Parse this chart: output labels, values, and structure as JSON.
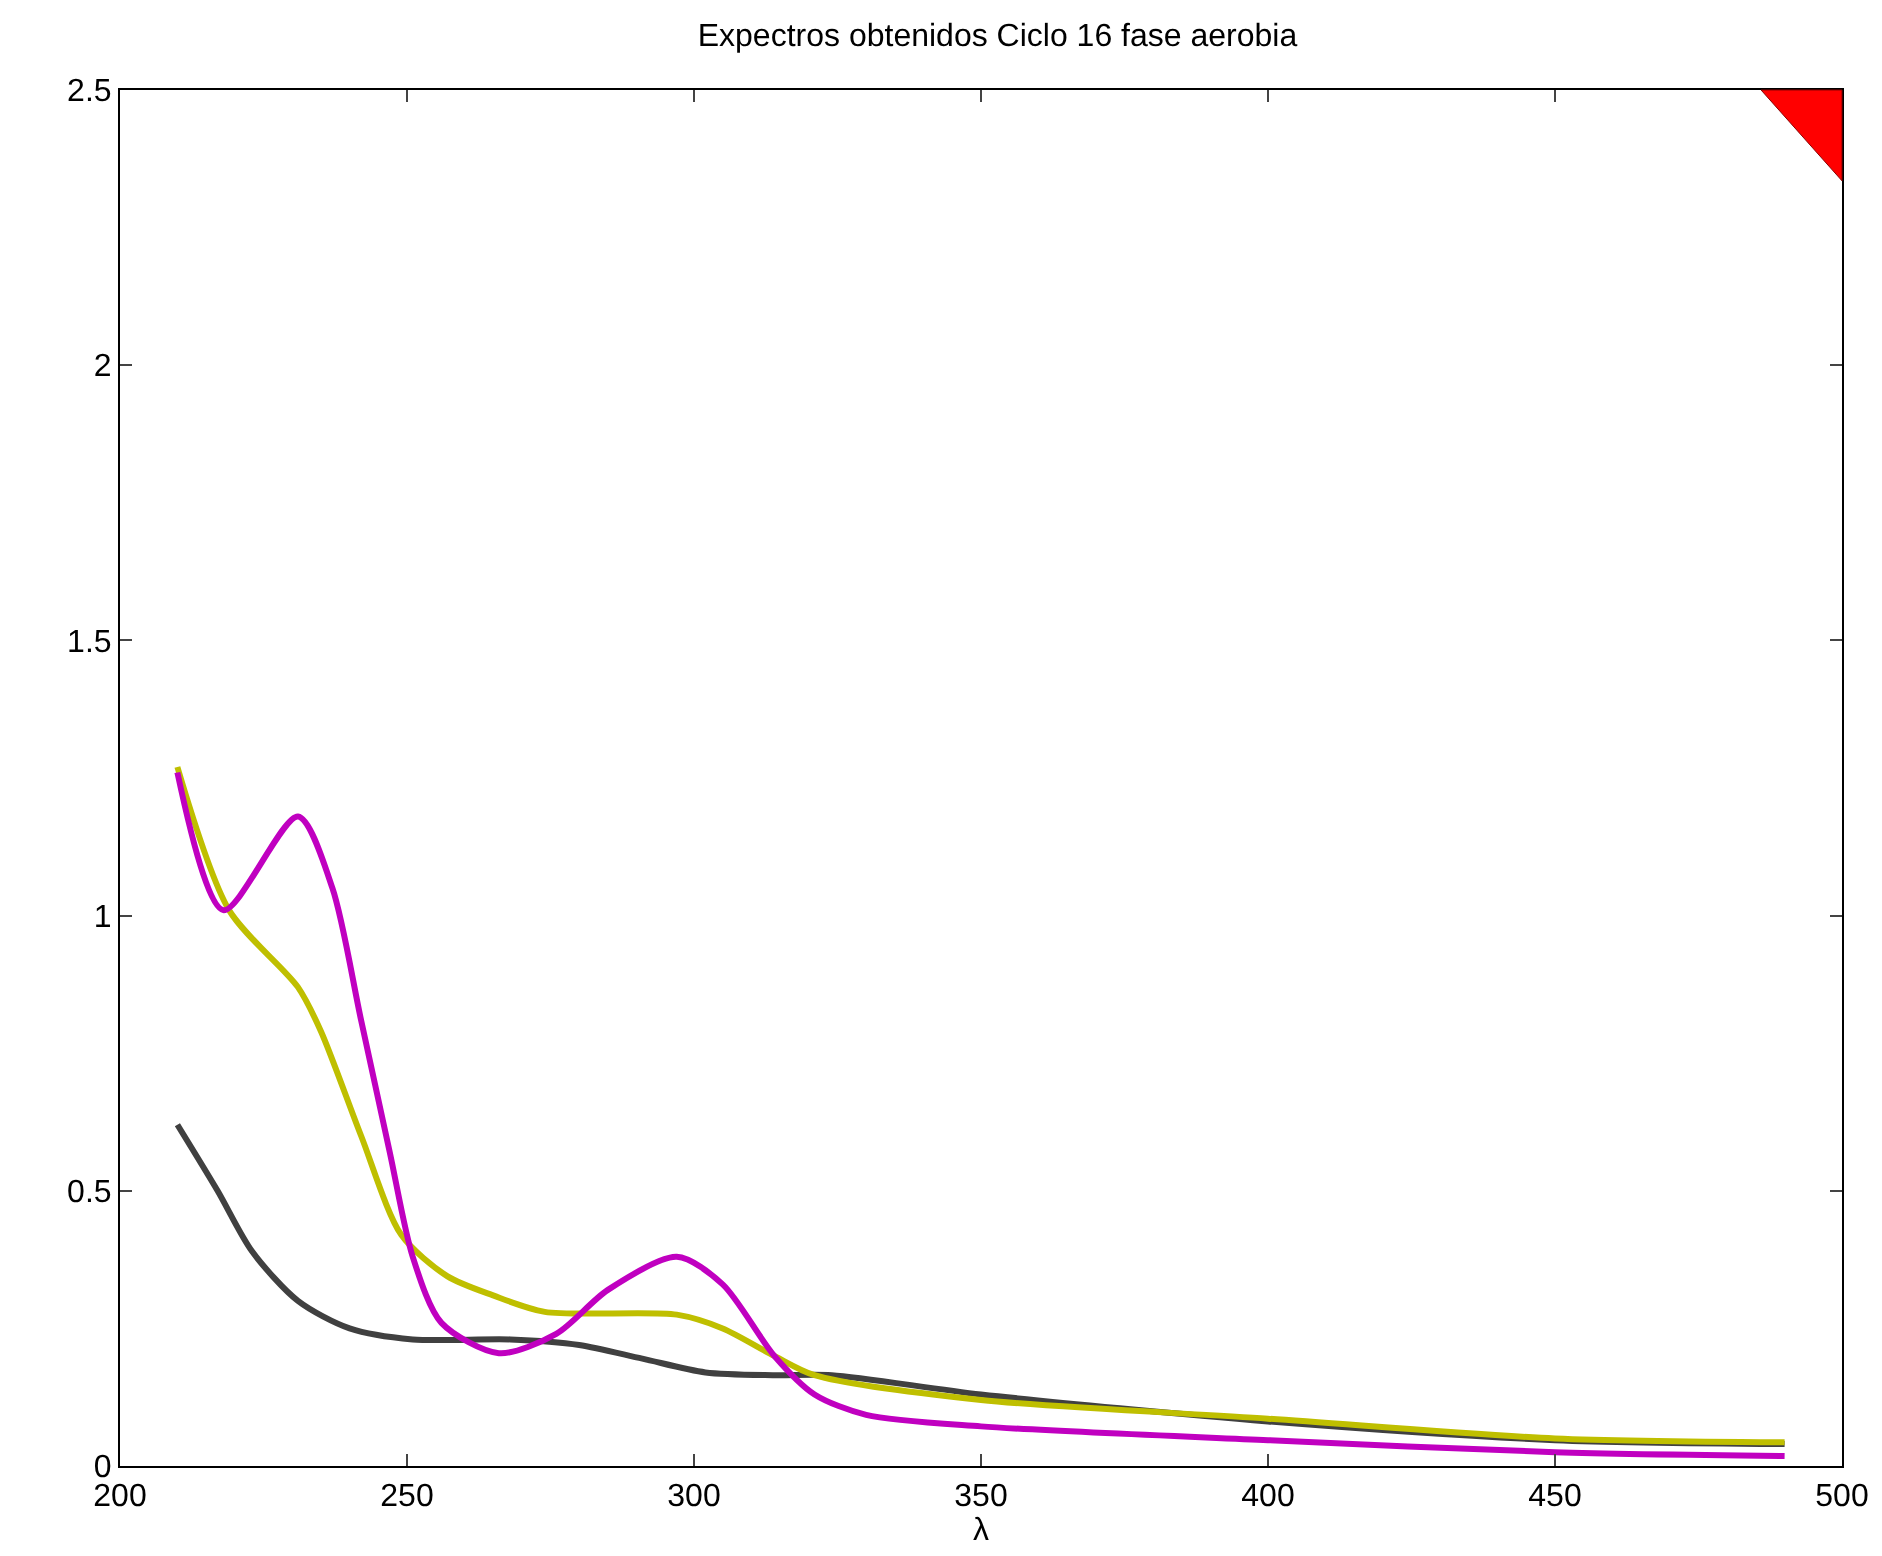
{
  "chart_data": {
    "type": "line",
    "title": "Expectros obtenidos Ciclo 16 fase aerobia",
    "xlabel": "λ",
    "xlim": [
      200,
      500
    ],
    "xticks": [
      200,
      250,
      300,
      350,
      400,
      450,
      500
    ],
    "ylim": [
      0,
      2.5
    ],
    "yticks": [
      0,
      {
        "value": 0.5,
        "label": "0.5"
      },
      1,
      {
        "value": 1.5,
        "label": "1.5"
      },
      2,
      {
        "value": 2.5,
        "label": "2.5"
      }
    ],
    "grid": false,
    "marker": "none",
    "line_style": "solid",
    "series": [
      {
        "color": "#404040",
        "x": [
          210,
          217,
          223,
          231,
          240,
          251,
          268,
          280,
          291,
          302,
          314,
          324,
          350,
          400,
          450,
          490
        ],
        "values": [
          0.62,
          0.5,
          0.39,
          0.3,
          0.25,
          0.23,
          0.23,
          0.22,
          0.195,
          0.17,
          0.165,
          0.165,
          0.13,
          0.081,
          0.047,
          0.04
        ]
      },
      {
        "color": "#bfbf00",
        "x": [
          210,
          219,
          231,
          235,
          242,
          249,
          257,
          265,
          274,
          297,
          305,
          314,
          321,
          350,
          400,
          450,
          490
        ],
        "values": [
          1.27,
          1.01,
          0.87,
          0.79,
          0.6,
          0.42,
          0.345,
          0.31,
          0.28,
          0.275,
          0.25,
          0.2,
          0.165,
          0.12,
          0.086,
          0.05,
          0.043
        ]
      },
      {
        "color": "#c000c0",
        "x": [
          210,
          218,
          231,
          237,
          242,
          247,
          251,
          256,
          266,
          276,
          285,
          297,
          305,
          314,
          321,
          330,
          350,
          400,
          450,
          490
        ],
        "values": [
          1.26,
          1.01,
          1.18,
          1.05,
          0.81,
          0.57,
          0.38,
          0.26,
          0.205,
          0.24,
          0.32,
          0.38,
          0.33,
          0.2,
          0.13,
          0.093,
          0.072,
          0.047,
          0.025,
          0.018
        ]
      }
    ]
  }
}
